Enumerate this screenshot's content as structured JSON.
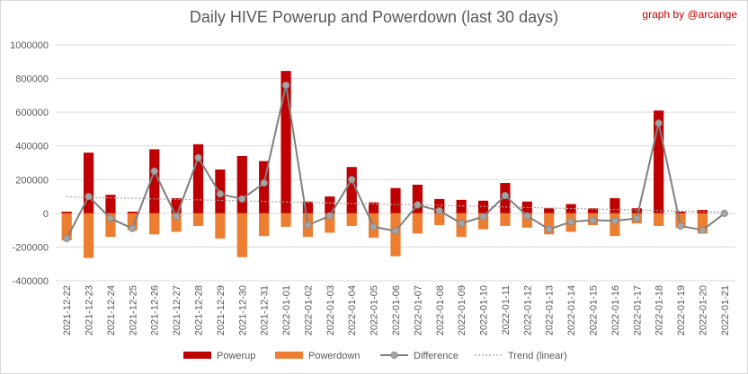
{
  "title": "Daily HIVE Powerup and Powerdown (last 30 days)",
  "credit": "graph by @arcange",
  "chart_data": {
    "type": "bar",
    "categories": [
      "2021-12-22",
      "2021-12-23",
      "2021-12-24",
      "2021-12-25",
      "2021-12-26",
      "2021-12-27",
      "2021-12-28",
      "2021-12-29",
      "2021-12-30",
      "2021-12-31",
      "2022-01-01",
      "2022-01-02",
      "2022-01-03",
      "2022-01-04",
      "2022-01-05",
      "2022-01-06",
      "2022-01-07",
      "2022-01-08",
      "2022-01-09",
      "2022-01-10",
      "2022-01-11",
      "2022-01-12",
      "2022-01-13",
      "2022-01-14",
      "2022-01-15",
      "2022-01-16",
      "2022-01-17",
      "2022-01-18",
      "2022-01-19",
      "2022-01-20",
      "2022-01-21"
    ],
    "series": [
      {
        "name": "Powerup",
        "type": "bar",
        "color": "#c00000",
        "values": [
          10000,
          360000,
          110000,
          10000,
          380000,
          90000,
          410000,
          260000,
          340000,
          310000,
          845000,
          70000,
          100000,
          275000,
          65000,
          150000,
          170000,
          85000,
          80000,
          75000,
          180000,
          70000,
          30000,
          55000,
          30000,
          90000,
          30000,
          610000,
          10000,
          20000,
          0
        ]
      },
      {
        "name": "Powerdown",
        "type": "bar",
        "color": "#ed7d31",
        "values": [
          -160000,
          -265000,
          -140000,
          -100000,
          -125000,
          -110000,
          -75000,
          -150000,
          -260000,
          -135000,
          -80000,
          -140000,
          -115000,
          -75000,
          -145000,
          -255000,
          -120000,
          -70000,
          -140000,
          -95000,
          -75000,
          -85000,
          -125000,
          -110000,
          -70000,
          -135000,
          -60000,
          -75000,
          -85000,
          -120000,
          0
        ]
      },
      {
        "name": "Difference",
        "type": "line",
        "color": "#a5a5a5",
        "values": [
          -150000,
          100000,
          -30000,
          -90000,
          250000,
          -20000,
          330000,
          115000,
          85000,
          180000,
          760000,
          -70000,
          -15000,
          200000,
          -80000,
          -105000,
          50000,
          15000,
          -60000,
          -20000,
          105000,
          -15000,
          -95000,
          -50000,
          -40000,
          -45000,
          -30000,
          535000,
          -75000,
          -100000,
          0
        ]
      }
    ],
    "trend": {
      "name": "Trend (linear)"
    },
    "ylim": [
      -400000,
      1000000
    ],
    "yticks": [
      -400000,
      -200000,
      0,
      200000,
      400000,
      600000,
      800000,
      1000000
    ],
    "grid": true,
    "legend": "bottom",
    "xlabel": "",
    "ylabel": ""
  }
}
